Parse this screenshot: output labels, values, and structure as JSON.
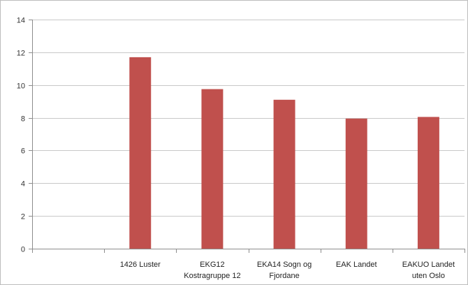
{
  "chart_data": {
    "type": "bar",
    "categories": [
      "",
      "1426 Luster",
      "EKG12 Kostragruppe 12",
      "EKA14 Sogn og Fjordane",
      "EAK Landet",
      "EAKUO Landet uten Oslo"
    ],
    "category_lines": [
      [
        ""
      ],
      [
        "1426 Luster"
      ],
      [
        "EKG12",
        "Kostragruppe 12"
      ],
      [
        "EKA14 Sogn og",
        "Fjordane"
      ],
      [
        "EAK Landet"
      ],
      [
        "EAKUO Landet",
        "uten Oslo"
      ]
    ],
    "values": [
      null,
      11.7,
      9.75,
      9.1,
      7.95,
      8.05
    ],
    "ylim": [
      0,
      14
    ],
    "yticks": [
      "0",
      "2",
      "4",
      "6",
      "8",
      "10",
      "12",
      "14"
    ],
    "grid": true,
    "legend": "none",
    "colors": {
      "bar": "#c0504d",
      "grid": "#c8c8c8",
      "axis": "#8c8c8c",
      "frame": "#bcbcbc"
    }
  }
}
